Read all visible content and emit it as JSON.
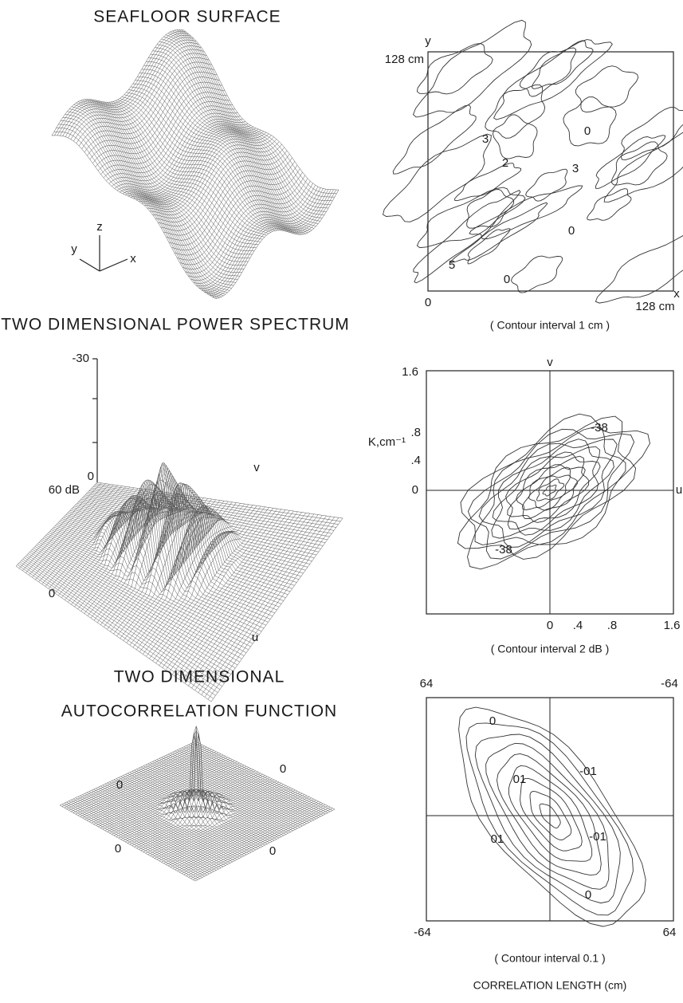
{
  "panels": {
    "surface": {
      "title": "SEAFLOOR SURFACE",
      "axes": [
        "z",
        "y",
        "x"
      ]
    },
    "surface_contour": {
      "y_axis": "y",
      "y_max": "128 cm",
      "origin": "0",
      "x_axis": "x",
      "x_max": "128 cm",
      "contour_labels": [
        "0",
        "3",
        "2",
        "3",
        "0",
        "5",
        "0"
      ],
      "caption": "( Contour interval 1 cm )"
    },
    "spectrum": {
      "title": "TWO DIMENSIONAL POWER SPECTRUM",
      "z_top": "-30",
      "z_zero": "0",
      "z_bottom": "60 dB",
      "v_axis": "v",
      "origin": "0",
      "u_axis": "u"
    },
    "spectrum_contour": {
      "y_max": "1.6",
      "v_axis": "v",
      "y_ticks": [
        ".8",
        ".4",
        "0"
      ],
      "y_unit": "K,cm⁻¹",
      "u_axis": "u",
      "x_ticks": [
        "0",
        ".4",
        ".8",
        "1.6"
      ],
      "contour_labels": [
        "-38",
        "-38"
      ],
      "caption": "( Contour interval 2 dB )"
    },
    "autocorrelation": {
      "title_line1": "TWO DIMENSIONAL",
      "title_line2": "AUTOCORRELATION FUNCTION",
      "zero_labels": [
        "0",
        "0",
        "0",
        "0"
      ]
    },
    "autocorrelation_contour": {
      "top_left": "64",
      "top_right": "-64",
      "bottom_left": "-64",
      "bottom_right": "64",
      "contour_labels": [
        "0",
        "-01",
        "01",
        "-01",
        "01",
        "0"
      ],
      "caption": "( Contour interval 0.1 )",
      "axis_title": "CORRELATION LENGTH (cm)"
    }
  }
}
